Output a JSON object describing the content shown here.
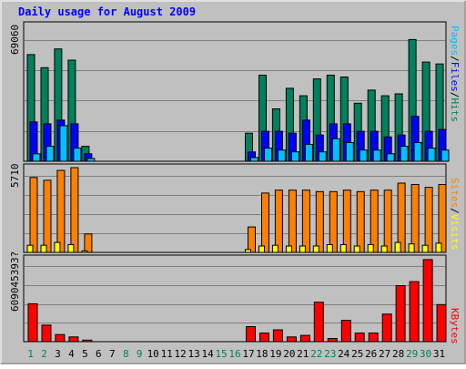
{
  "title": "Daily usage for August 2009",
  "colors": {
    "hits": "#00805c",
    "files": "#0000ff",
    "pages": "#00c0ff",
    "visits": "#ffff00",
    "sites": "#ff8000",
    "kbytes": "#ff0000",
    "title": "#0000ff",
    "panel": "#c0c0c0",
    "grid": "#808080",
    "weekend_day": "#00805c",
    "weekday": "#000000"
  },
  "legend": {
    "pages": "Pages",
    "files": "Files",
    "hits": "Hits",
    "visits": "Visits",
    "sites": "Sites",
    "kbytes": "KBytes",
    "sep": "/"
  },
  "y_max_labels": {
    "hits": "69060",
    "visits": "5710",
    "kbytes": "609045393?"
  },
  "chart_data": {
    "type": "bar",
    "title": "Daily usage for August 2009",
    "categories": [
      "1",
      "2",
      "3",
      "4",
      "5",
      "6",
      "7",
      "8",
      "9",
      "10",
      "11",
      "12",
      "13",
      "14",
      "15",
      "16",
      "17",
      "18",
      "19",
      "20",
      "21",
      "22",
      "23",
      "24",
      "25",
      "26",
      "27",
      "28",
      "29",
      "30",
      "31"
    ],
    "weekend_days": [
      1,
      2,
      8,
      9,
      15,
      16,
      22,
      23,
      29,
      30
    ],
    "hits_files_pages": {
      "ymax": 69060,
      "series": [
        {
          "name": "Hits",
          "values": [
            57000,
            50000,
            60000,
            54000,
            8000,
            0,
            0,
            0,
            0,
            0,
            0,
            0,
            0,
            0,
            0,
            0,
            15000,
            46000,
            28000,
            39000,
            35000,
            44000,
            46000,
            45000,
            31000,
            38000,
            35000,
            36000,
            65000,
            53000,
            52000,
            40000
          ]
        },
        {
          "name": "Files",
          "values": [
            21000,
            20000,
            22000,
            20000,
            4000,
            0,
            0,
            0,
            0,
            0,
            0,
            0,
            0,
            0,
            0,
            0,
            5000,
            16000,
            16000,
            15000,
            22000,
            14000,
            20000,
            20000,
            16000,
            16000,
            13000,
            14000,
            24000,
            16000,
            17000,
            11000
          ]
        },
        {
          "name": "Pages",
          "values": [
            4000,
            8000,
            19000,
            7000,
            1500,
            0,
            0,
            0,
            0,
            0,
            0,
            0,
            0,
            0,
            0,
            0,
            2000,
            7000,
            6000,
            5000,
            9000,
            5000,
            12000,
            10000,
            6000,
            6000,
            4000,
            8000,
            10000,
            7000,
            6000,
            5000
          ]
        }
      ]
    },
    "visits_sites": {
      "ymax": 5710,
      "series": [
        {
          "name": "Visits",
          "values": [
            500,
            500,
            700,
            550,
            100,
            0,
            0,
            0,
            0,
            0,
            0,
            0,
            0,
            0,
            0,
            0,
            200,
            450,
            500,
            450,
            450,
            450,
            550,
            550,
            450,
            550,
            450,
            700,
            600,
            500,
            650,
            550
          ]
        },
        {
          "name": "Sites",
          "values": [
            5300,
            5100,
            5800,
            6000,
            1300,
            0,
            0,
            0,
            0,
            0,
            0,
            0,
            0,
            0,
            0,
            0,
            1800,
            4200,
            4400,
            4400,
            4400,
            4300,
            4300,
            4400,
            4300,
            4400,
            4400,
            4900,
            4800,
            4600,
            4800,
            5100
          ]
        }
      ]
    },
    "kbytes": {
      "ymax_label": "609045393?",
      "ymax": 100,
      "series": [
        {
          "name": "KBytes",
          "values": [
            48,
            21,
            9,
            6,
            2,
            0,
            0,
            0,
            0,
            0,
            0,
            0,
            0,
            0,
            0,
            0,
            19,
            11,
            15,
            6,
            8,
            50,
            4,
            27,
            11,
            11,
            35,
            71,
            76,
            104,
            47
          ]
        }
      ]
    }
  }
}
